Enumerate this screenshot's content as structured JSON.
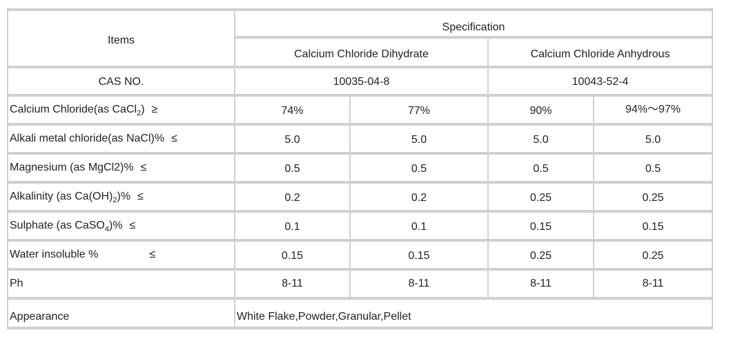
{
  "table": {
    "items_header": "Items",
    "specification_header": "Specification",
    "dihydrate_header": "Calcium Chloride Dihydrate",
    "anhydrous_header": "Calcium Chloride Anhydrous",
    "cas_label": "CAS NO.",
    "cas_dihydrate": "10035-04-8",
    "cas_anhydrous": "10043-52-4",
    "rows": [
      {
        "label_pre": "Calcium Chloride(as CaCl",
        "label_sub": "2",
        "label_post": ")",
        "symbol": "≥",
        "values": [
          "74%",
          "77%",
          "90%",
          "94%～97%"
        ]
      },
      {
        "label_pre": "Alkali metal chloride(as NaCl)%",
        "label_sub": "",
        "label_post": "",
        "symbol": "≤",
        "values": [
          "5.0",
          "5.0",
          "5.0",
          "5.0"
        ]
      },
      {
        "label_pre": "Magnesium (as MgCl2)%",
        "label_sub": "",
        "label_post": "",
        "symbol": "≤",
        "values": [
          "0.5",
          "0.5",
          "0.5",
          "0.5"
        ]
      },
      {
        "label_pre": "Alkalinity (as Ca(OH)",
        "label_sub": "2",
        "label_post": ")%",
        "symbol": "≤",
        "values": [
          "0.2",
          "0.2",
          "0.25",
          "0.25"
        ]
      },
      {
        "label_pre": "Sulphate (as CaSO",
        "label_sub": "4",
        "label_post": ")%",
        "symbol": "≤",
        "values": [
          "0.1",
          "0.1",
          "0.15",
          "0.15"
        ]
      },
      {
        "label_pre": "Water insoluble %",
        "label_sub": "",
        "label_post": "",
        "symbol": "≤",
        "values": [
          "0.15",
          "0.15",
          "0.25",
          "0.25"
        ]
      },
      {
        "label_pre": "Ph",
        "label_sub": "",
        "label_post": "",
        "symbol": "",
        "values": [
          "8-11",
          "8-11",
          "8-11",
          "8-11"
        ]
      }
    ],
    "appearance_label": "Appearance",
    "appearance_value": "White Flake,Powder,Granular,Pellet"
  }
}
